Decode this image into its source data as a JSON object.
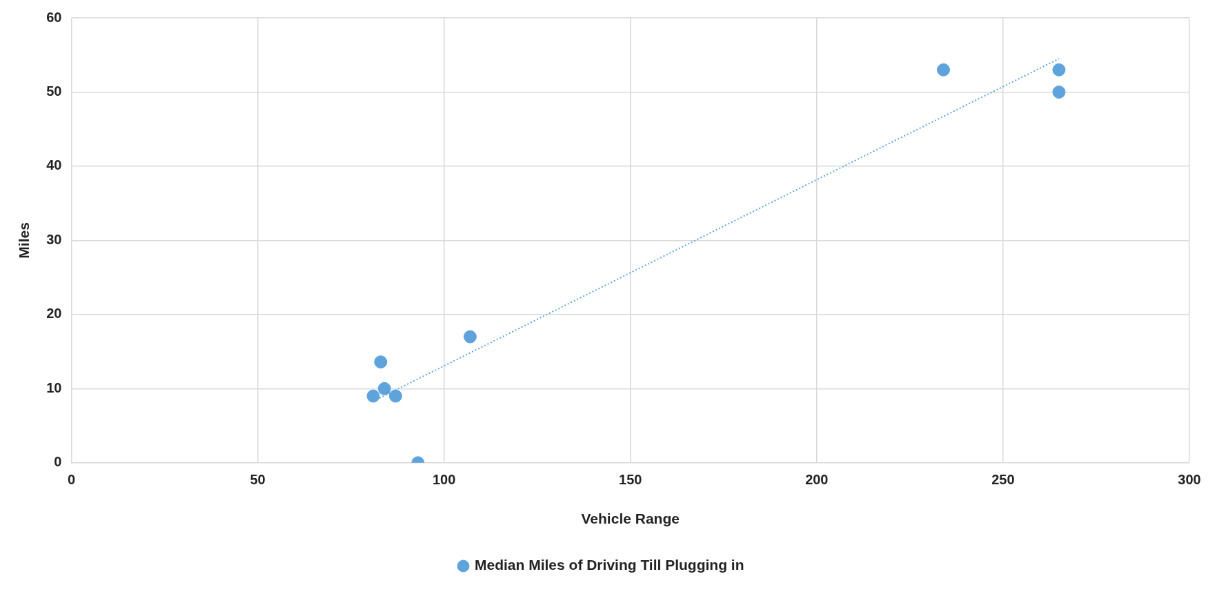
{
  "chart_data": {
    "type": "scatter",
    "xlabel": "Vehicle Range",
    "ylabel": "Miles",
    "xlim": [
      0,
      300
    ],
    "xticks": [
      0,
      50,
      100,
      150,
      200,
      250,
      300
    ],
    "ylim": [
      0,
      60
    ],
    "yticks": [
      0,
      10,
      20,
      30,
      40,
      50,
      60
    ],
    "grid": true,
    "legend": "bottom",
    "series": [
      {
        "name": "Median Miles of Driving Till Plugging in",
        "color": "#5ea3dc",
        "marker": "circle",
        "x": [
          81,
          83,
          84,
          87,
          93,
          107,
          234,
          265,
          265
        ],
        "values": [
          9,
          13.6,
          10,
          9,
          0,
          17,
          53,
          53,
          50
        ]
      },
      {
        "type": "line",
        "color": "#5ea3dc",
        "line_style": "dotted",
        "marker": "none",
        "x": [
          81,
          265
        ],
        "values": [
          8.3,
          54.5
        ]
      }
    ]
  }
}
